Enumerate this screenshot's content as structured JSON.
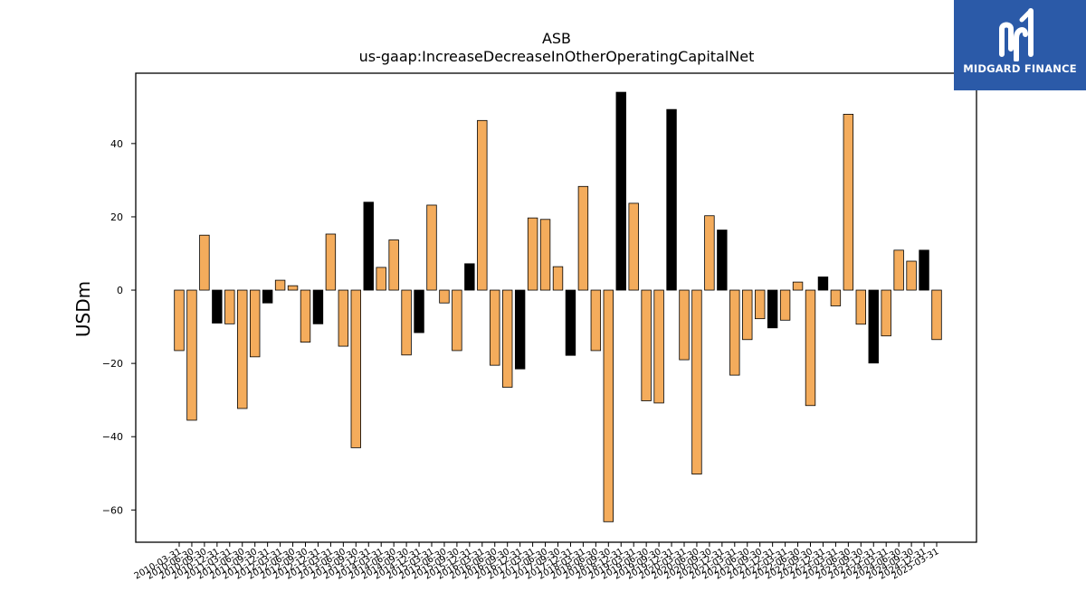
{
  "chart_data": {
    "type": "bar",
    "title": "ASB",
    "subtitle": "us-gaap:IncreaseDecreaseInOtherOperatingCapitalNet",
    "xlabel": "",
    "ylabel": "USDm",
    "ylim": [
      -68.8,
      59.2
    ],
    "yticks": [
      -60,
      -40,
      -20,
      0,
      20,
      40
    ],
    "grid": false,
    "categories": [
      "2010-03-31",
      "2010-06-30",
      "2010-09-30",
      "2010-12-31",
      "2011-03-31",
      "2011-06-30",
      "2011-09-30",
      "2011-12-31",
      "2012-03-31",
      "2012-06-30",
      "2012-09-30",
      "2012-12-31",
      "2013-03-31",
      "2013-06-30",
      "2013-09-30",
      "2013-12-31",
      "2014-03-31",
      "2014-06-30",
      "2014-09-30",
      "2014-12-31",
      "2015-03-31",
      "2015-06-30",
      "2015-09-30",
      "2015-12-31",
      "2016-03-31",
      "2016-06-30",
      "2016-09-30",
      "2016-12-31",
      "2017-03-31",
      "2017-06-30",
      "2017-09-30",
      "2017-12-31",
      "2018-03-31",
      "2018-06-30",
      "2018-09-30",
      "2018-12-31",
      "2019-03-31",
      "2019-06-30",
      "2019-09-30",
      "2019-12-31",
      "2020-03-31",
      "2020-06-30",
      "2020-09-30",
      "2020-12-31",
      "2021-03-31",
      "2021-06-30",
      "2021-09-30",
      "2021-12-31",
      "2022-03-31",
      "2022-06-30",
      "2022-09-30",
      "2022-12-31",
      "2023-03-31",
      "2023-06-30",
      "2023-09-30",
      "2023-12-31",
      "2024-03-31",
      "2024-06-30",
      "2024-09-30",
      "2024-12-31",
      "2025-03-31"
    ],
    "values": [
      -16.5,
      -35.5,
      15,
      -9,
      -9.2,
      -32.3,
      -18.2,
      -3.5,
      2.7,
      1.2,
      -14.2,
      -9.2,
      15.3,
      -15.3,
      -43,
      24,
      6.2,
      13.7,
      -17.7,
      -11.6,
      23.2,
      -3.5,
      -16.5,
      7.2,
      46.3,
      -20.5,
      -26.5,
      -21.5,
      19.7,
      19.3,
      6.4,
      -17.8,
      28.3,
      -16.5,
      -63.2,
      54,
      23.7,
      -30.2,
      -30.8,
      49.3,
      -19,
      -50.2,
      20.3,
      16.4,
      -23.2,
      -13.5,
      -7.8,
      -10.3,
      -8.2,
      2.2,
      -31.5,
      3.6,
      -4.3,
      48,
      -9.3,
      -19.9,
      -12.5,
      10.9,
      7.9,
      10.9,
      -13.5
    ],
    "bar_colors": [
      "#f4ac5c",
      "#f4ac5c",
      "#f4ac5c",
      "#000000",
      "#f4ac5c",
      "#f4ac5c",
      "#f4ac5c",
      "#000000",
      "#f4ac5c",
      "#f4ac5c",
      "#f4ac5c",
      "#000000",
      "#f4ac5c",
      "#f4ac5c",
      "#f4ac5c",
      "#000000",
      "#f4ac5c",
      "#f4ac5c",
      "#f4ac5c",
      "#000000",
      "#f4ac5c",
      "#f4ac5c",
      "#f4ac5c",
      "#000000",
      "#f4ac5c",
      "#f4ac5c",
      "#f4ac5c",
      "#000000",
      "#f4ac5c",
      "#f4ac5c",
      "#f4ac5c",
      "#000000",
      "#f4ac5c",
      "#f4ac5c",
      "#f4ac5c",
      "#000000",
      "#f4ac5c",
      "#f4ac5c",
      "#f4ac5c",
      "#000000",
      "#f4ac5c",
      "#f4ac5c",
      "#f4ac5c",
      "#000000",
      "#f4ac5c",
      "#f4ac5c",
      "#f4ac5c",
      "#000000",
      "#f4ac5c",
      "#f4ac5c",
      "#f4ac5c",
      "#000000",
      "#f4ac5c",
      "#f4ac5c",
      "#f4ac5c",
      "#000000",
      "#f4ac5c",
      "#f4ac5c",
      "#f4ac5c",
      "#000000",
      "#f4ac5c"
    ]
  },
  "logo": {
    "text": "MIDGARD FINANCE",
    "background": "#2b5aa8"
  }
}
